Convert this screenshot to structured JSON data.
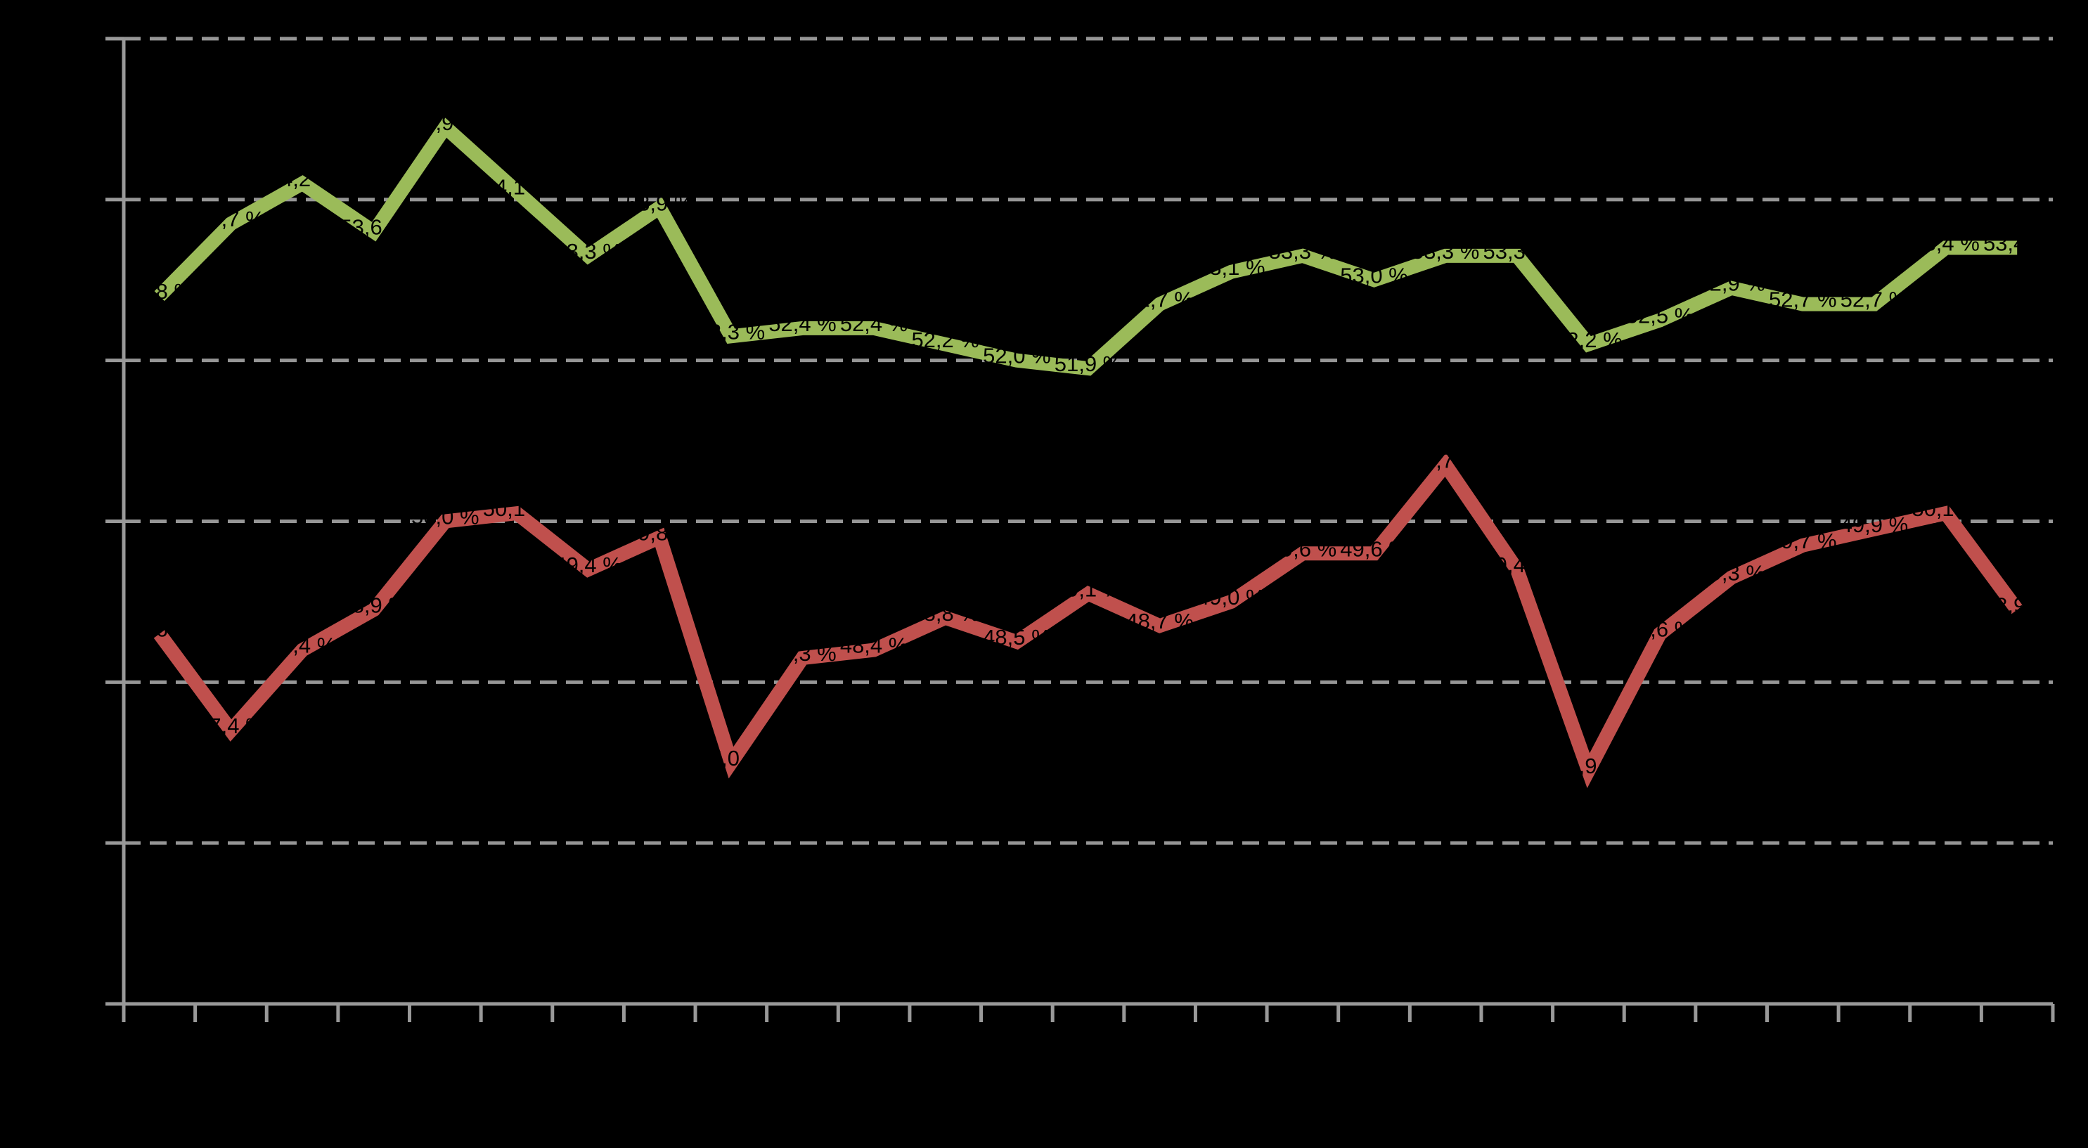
{
  "app": {
    "background_color": "#000000"
  },
  "chart_data": {
    "type": "line",
    "title": "",
    "xlabel": "",
    "ylabel": "",
    "point_count": 27,
    "ylim": [
      44,
      56
    ],
    "y_gridline_values": [
      56,
      54,
      52,
      50,
      48,
      46
    ],
    "grid_on": true,
    "legend_position": "none",
    "grid_color": "#969696",
    "axis_color": "#999999",
    "label_color": "#000000",
    "label_format": "decimal_comma_percent",
    "series": [
      {
        "name": "series-green",
        "color": "#9BBB59",
        "values": [
          52.8,
          53.7,
          54.2,
          53.6,
          54.9,
          54.1,
          53.3,
          53.9,
          52.3,
          52.4,
          52.4,
          52.2,
          52.0,
          51.9,
          52.7,
          53.1,
          53.3,
          53.0,
          53.3,
          53.3,
          52.2,
          52.5,
          52.9,
          52.7,
          52.7,
          53.4,
          53.4
        ],
        "labels": [
          "52,8 %",
          "53,7 %",
          "54,2 %",
          "53,6 %",
          "54,9 %",
          "54,1 %",
          "53,3 %",
          "53,9 %",
          "52,3 %",
          "52,4 %",
          "52,4 %",
          "52,2 %",
          "52,0 %",
          "51,9 %",
          "52,7 %",
          "53,1 %",
          "53,3 %",
          "53,0 %",
          "53,3 %",
          "53,3 %",
          "52,2 %",
          "52,5 %",
          "52,9 %",
          "52,7 %",
          "52,7 %",
          "53,4 %",
          "53,4 %"
        ]
      },
      {
        "name": "series-red",
        "color": "#C0504D",
        "values": [
          48.6,
          47.4,
          48.4,
          48.9,
          50.0,
          50.1,
          49.4,
          49.8,
          47.0,
          48.3,
          48.4,
          48.8,
          48.5,
          49.1,
          48.7,
          49.0,
          49.6,
          49.6,
          50.7,
          49.4,
          46.9,
          48.6,
          49.3,
          49.7,
          49.9,
          50.1,
          48.9
        ],
        "labels": [
          "48,6 %",
          "47,4 %",
          "48,4 %",
          "48,9 %",
          "50,0 %",
          "50,1 %",
          "49,4 %",
          "49,8 %",
          "47,0 %",
          "48,3 %",
          "48,4 %",
          "48,8 %",
          "48,5 %",
          "49,1 %",
          "48,7 %",
          "49,0 %",
          "49,6 %",
          "49,6 %",
          "50,7 %",
          "49,4 %",
          "46,9 %",
          "48,6 %",
          "49,3 %",
          "49,7 %",
          "49,9 %",
          "50,1 %",
          "48,9 %"
        ]
      }
    ]
  }
}
